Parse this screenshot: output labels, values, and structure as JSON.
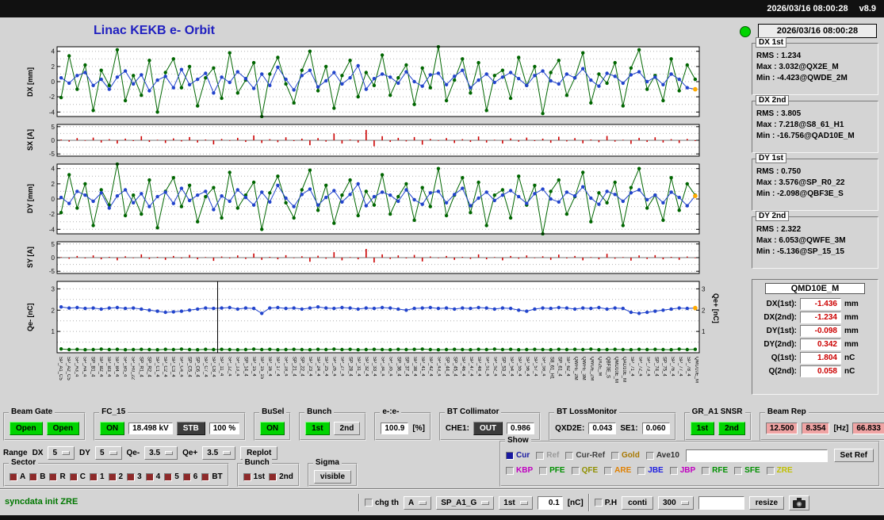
{
  "topbar": {
    "datetime": "2026/03/16 08:00:28",
    "version": "v8.9"
  },
  "title": "Linac KEKB e- Orbit",
  "status_panel": {
    "timestamp": "2026/03/16 08:00:28",
    "groups": [
      {
        "title": "DX 1st",
        "rms": "RMS : 1.234",
        "max": "Max : 3.032@QX2E_M",
        "min": "Min : -4.423@QWDE_2M"
      },
      {
        "title": "DX 2nd",
        "rms": "RMS : 3.805",
        "max": "Max : 7.218@S8_61_H1",
        "min": "Min : -16.756@QAD10E_M"
      },
      {
        "title": "DY 1st",
        "rms": "RMS : 0.750",
        "max": "Max : 3.576@SP_R0_22",
        "min": "Min : -2.098@QBF3E_S"
      },
      {
        "title": "DY 2nd",
        "rms": "RMS : 2.322",
        "max": "Max : 6.053@QWFE_3M",
        "min": "Min : -5.136@SP_15_15"
      }
    ],
    "magnet": {
      "name": "QMD10E_M",
      "rows": [
        {
          "label": "DX(1st):",
          "value": "-1.436",
          "unit": "mm"
        },
        {
          "label": "DX(2nd):",
          "value": "-1.234",
          "unit": "mm"
        },
        {
          "label": "DY(1st):",
          "value": "-0.098",
          "unit": "mm"
        },
        {
          "label": "DY(2nd):",
          "value": "0.342",
          "unit": "mm"
        },
        {
          "label": "Q(1st):",
          "value": "1.804",
          "unit": "nC"
        },
        {
          "label": "Q(2nd):",
          "value": "0.058",
          "unit": "nC"
        }
      ]
    }
  },
  "chart_data": [
    {
      "type": "line-scatter",
      "name": "DX",
      "ylabel": "DX [mm]",
      "ylim": [
        -4.6,
        4.6
      ],
      "yticks": [
        4,
        2,
        0,
        -2,
        -4
      ],
      "grid": [
        -4,
        -3,
        -2,
        -1,
        0,
        1,
        2,
        3,
        4
      ],
      "end_marker": "#ffaa00",
      "series": [
        {
          "name": "2nd bunch",
          "color": "#006600",
          "values": [
            -2.1,
            3.4,
            -1.0,
            2.2,
            -3.8,
            1.5,
            -0.5,
            4.2,
            -2.5,
            0.8,
            -1.8,
            2.8,
            -4.0,
            1.2,
            3.0,
            -0.8,
            2.0,
            -3.2,
            0.5,
            1.8,
            -2.2,
            3.8,
            -1.5,
            0.2,
            2.5,
            -6.0,
            1.0,
            3.2,
            -0.3,
            -2.8,
            1.5,
            4.0,
            -1.2,
            2.0,
            -3.5,
            0.8,
            2.8,
            -2.0,
            1.2,
            -0.5,
            3.5,
            -1.8,
            0.5,
            2.2,
            -3.0,
            1.8,
            -0.8,
            7.0,
            -2.5,
            0.2,
            3.0,
            -1.5,
            2.5,
            -3.8,
            0.8,
            1.5,
            -2.2,
            3.2,
            -0.5,
            2.0,
            -4.2,
            1.2,
            2.8,
            -1.8,
            0.5,
            3.8,
            -2.8,
            1.0,
            -0.2,
            2.5,
            -3.2,
            1.8,
            4.2,
            -1.0,
            0.8,
            -2.5,
            3.0,
            -1.2,
            2.2,
            0.3
          ]
        },
        {
          "name": "1st bunch",
          "color": "#2244cc",
          "values": [
            0.5,
            -0.2,
            0.8,
            1.2,
            -0.5,
            0.3,
            -1.0,
            0.6,
            1.4,
            -0.3,
            0.9,
            -1.2,
            0.2,
            0.7,
            -0.8,
            1.6,
            -0.4,
            0.3,
            1.1,
            -1.5,
            0.6,
            -0.1,
            1.3,
            0.4,
            -0.9,
            1.0,
            -0.5,
            1.9,
            0.3,
            -1.1,
            0.8,
            1.5,
            -0.7,
            0.1,
            1.2,
            -0.3,
            0.5,
            2.1,
            -1.0,
            0.4,
            1.0,
            0.6,
            -0.2,
            1.3,
            0.0,
            -0.6,
            0.9,
            1.1,
            -0.4,
            0.7,
            1.5,
            -0.8,
            0.2,
            1.0,
            -0.1,
            0.6,
            1.2,
            0.4,
            -0.5,
            0.8,
            1.4,
            0.1,
            -0.3,
            1.0,
            0.5,
            1.7,
            0.2,
            -0.6,
            1.1,
            0.7,
            -0.2,
            0.9,
            1.3,
            0.0,
            0.6,
            -0.4,
            1.0,
            0.3,
            -0.8,
            -1.0
          ]
        }
      ]
    },
    {
      "type": "bars",
      "name": "SX",
      "ylabel": "SX [A]",
      "ylim": [
        -5.8,
        5.8
      ],
      "yticks": [
        5,
        0,
        -5
      ],
      "grid": [
        -5,
        -2.5,
        2.5,
        5
      ],
      "color": "#cc0000",
      "values": [
        0.3,
        -0.5,
        0.8,
        -0.2,
        1.0,
        -0.8,
        0.4,
        -1.2,
        0.6,
        -0.3,
        1.5,
        -0.6,
        0.2,
        -1.0,
        0.7,
        -0.4,
        1.2,
        -0.8,
        0.3,
        -1.5,
        0.5,
        -0.2,
        0.9,
        -0.6,
        1.8,
        -1.0,
        0.4,
        -0.7,
        1.1,
        -0.3,
        0.6,
        -1.8,
        0.8,
        -0.5,
        2.5,
        -1.2,
        0.3,
        -0.8,
        3.8,
        -2.2,
        1.5,
        -0.6,
        0.9,
        -0.4,
        1.2,
        -1.6,
        0.5,
        -0.2,
        0.8,
        -1.0,
        0.4,
        -0.6,
        1.4,
        -0.8,
        0.2,
        -1.2,
        0.7,
        -0.5,
        1.0,
        -0.3,
        0.6,
        -0.9,
        1.3,
        -0.4,
        0.8,
        -1.1,
        0.3,
        -0.7,
        1.6,
        -0.5,
        0.2,
        -1.3,
        0.9,
        -0.6,
        1.1,
        -0.8,
        0.4,
        -1.0,
        0.5,
        -0.3
      ]
    },
    {
      "type": "line-scatter",
      "name": "DY",
      "ylabel": "DY [mm]",
      "ylim": [
        -4.6,
        4.6
      ],
      "yticks": [
        4,
        2,
        0,
        -2,
        -4
      ],
      "grid": [
        -4,
        -3,
        -2,
        -1,
        0,
        1,
        2,
        3,
        4
      ],
      "end_marker": "#ffaa00",
      "series": [
        {
          "name": "2nd bunch",
          "color": "#006600",
          "values": [
            -1.8,
            3.2,
            -1.2,
            2.0,
            -3.5,
            1.2,
            -0.8,
            6.0,
            -2.2,
            0.5,
            -2.0,
            2.5,
            -3.8,
            1.0,
            2.8,
            -1.0,
            1.8,
            -3.0,
            0.3,
            1.5,
            -2.5,
            3.5,
            -1.2,
            0.5,
            2.2,
            -4.0,
            0.8,
            3.0,
            -0.5,
            -2.5,
            1.2,
            3.8,
            -1.5,
            1.8,
            -3.2,
            0.5,
            2.5,
            -2.2,
            1.0,
            -0.8,
            3.2,
            -2.0,
            0.3,
            2.0,
            -2.8,
            1.5,
            -1.0,
            4.0,
            -2.2,
            0.5,
            2.8,
            -1.8,
            2.2,
            -3.5,
            0.5,
            1.2,
            -2.5,
            3.0,
            -0.8,
            1.8,
            -6.5,
            1.0,
            2.5,
            -2.0,
            0.3,
            3.5,
            -3.0,
            0.8,
            -0.5,
            2.2,
            -3.5,
            1.5,
            4.0,
            -1.2,
            0.5,
            -2.8,
            2.8,
            -1.5,
            2.0,
            0.5
          ]
        },
        {
          "name": "1st bunch",
          "color": "#2244cc",
          "values": [
            0.2,
            -0.6,
            1.0,
            0.5,
            -0.3,
            0.8,
            -1.2,
            0.4,
            1.2,
            -0.5,
            0.7,
            -1.0,
            0.3,
            0.9,
            -0.6,
            1.4,
            -0.2,
            0.5,
            1.0,
            -1.4,
            0.4,
            -0.3,
            1.2,
            0.2,
            -0.8,
            0.9,
            -0.4,
            1.8,
            0.1,
            -1.0,
            0.6,
            1.3,
            -0.8,
            0.2,
            1.1,
            -0.4,
            0.6,
            2.0,
            -0.9,
            0.3,
            0.9,
            0.5,
            -0.3,
            1.2,
            -0.1,
            -0.7,
            0.8,
            1.0,
            -0.5,
            0.6,
            1.4,
            -0.9,
            0.1,
            0.9,
            -0.2,
            0.5,
            1.1,
            0.3,
            -0.6,
            0.7,
            1.3,
            0.0,
            -0.4,
            0.9,
            0.4,
            1.6,
            0.1,
            -0.7,
            1.0,
            0.6,
            -0.3,
            0.8,
            1.2,
            -0.1,
            0.5,
            -0.5,
            0.9,
            0.2,
            -0.9,
            0.4
          ]
        }
      ]
    },
    {
      "type": "bars",
      "name": "SY",
      "ylabel": "SY [A]",
      "ylim": [
        -5.8,
        5.8
      ],
      "yticks": [
        5,
        0,
        -5
      ],
      "grid": [
        -5,
        -2.5,
        2.5,
        5
      ],
      "color": "#cc0000",
      "values": [
        0.2,
        -0.4,
        0.6,
        -0.3,
        0.8,
        -0.6,
        0.3,
        -1.0,
        0.5,
        -0.2,
        1.2,
        -0.5,
        0.3,
        -0.8,
        0.6,
        -0.3,
        1.0,
        -0.6,
        0.2,
        -1.2,
        0.4,
        -0.3,
        0.8,
        -0.5,
        1.5,
        -0.8,
        0.3,
        -0.6,
        0.9,
        -0.2,
        0.5,
        -1.5,
        0.7,
        -0.4,
        2.0,
        -1.0,
        0.2,
        -0.6,
        3.2,
        -1.8,
        1.2,
        -0.5,
        0.8,
        -0.3,
        1.0,
        -1.4,
        0.4,
        -0.2,
        0.6,
        -0.8,
        0.3,
        -0.5,
        1.2,
        -0.6,
        0.2,
        -1.0,
        0.6,
        -0.4,
        0.8,
        -0.2,
        0.5,
        -0.8,
        1.1,
        -0.3,
        0.6,
        -1.0,
        0.2,
        -0.6,
        1.4,
        -0.4,
        0.2,
        -1.1,
        0.8,
        -0.5,
        0.9,
        -0.6,
        0.3,
        -0.8,
        0.4,
        -0.2
      ]
    },
    {
      "type": "line-scatter",
      "name": "Qe",
      "ylabel": "Qe- [nC]",
      "ylabel_right": "Qe+ [nC]",
      "ylim": [
        0,
        3.35
      ],
      "yticks": [
        1,
        2,
        3
      ],
      "grid": [
        0.5,
        1,
        1.5,
        2,
        2.5,
        3
      ],
      "right_ticks": true,
      "vline_frac": 0.25,
      "end_marker": "#ffaa00",
      "series": [
        {
          "name": "Qe+",
          "color": "#006600",
          "values": [
            0.18,
            0.15,
            0.16,
            0.14,
            0.15,
            0.17,
            0.15,
            0.16,
            0.14,
            0.15,
            0.16,
            0.15,
            0.14,
            0.16,
            0.15,
            0.17,
            0.15,
            0.14,
            0.16,
            0.15,
            0.16,
            0.15,
            0.14,
            0.15,
            0.17,
            0.15,
            0.16,
            0.14,
            0.15,
            0.16,
            0.15,
            0.14,
            0.16,
            0.15,
            0.17,
            0.15,
            0.16,
            0.14,
            0.15,
            0.16,
            0.15,
            0.14,
            0.16,
            0.15,
            0.16,
            0.17,
            0.15,
            0.14,
            0.15,
            0.16,
            0.15,
            0.14,
            0.16,
            0.15,
            0.17,
            0.15,
            0.16,
            0.14,
            0.15,
            0.16,
            0.15,
            0.14,
            0.16,
            0.15,
            0.16,
            0.15,
            0.17,
            0.14,
            0.15,
            0.16,
            0.15,
            0.14,
            0.16,
            0.15,
            0.16,
            0.15,
            0.14,
            0.17,
            0.15,
            0.16
          ]
        },
        {
          "name": "Qe-",
          "color": "#2244cc",
          "values": [
            2.15,
            2.1,
            2.12,
            2.08,
            2.1,
            2.05,
            2.1,
            2.12,
            2.08,
            2.1,
            2.05,
            2.0,
            1.95,
            1.9,
            1.92,
            1.95,
            2.0,
            2.05,
            2.1,
            2.08,
            2.1,
            2.12,
            2.05,
            2.1,
            2.08,
            1.85,
            2.1,
            2.12,
            2.08,
            2.1,
            2.05,
            2.1,
            2.15,
            2.1,
            2.08,
            2.12,
            2.1,
            2.05,
            2.1,
            2.08,
            2.12,
            2.1,
            2.05,
            2.0,
            2.08,
            2.1,
            2.12,
            2.08,
            2.1,
            2.05,
            2.1,
            2.08,
            2.12,
            2.1,
            2.05,
            2.1,
            2.08,
            2.0,
            1.95,
            2.05,
            2.1,
            2.08,
            2.12,
            2.1,
            2.05,
            2.1,
            2.08,
            2.12,
            2.05,
            2.1,
            2.08,
            1.9,
            1.85,
            1.9,
            1.95,
            2.0,
            2.05,
            2.1,
            2.08,
            2.1
          ]
        }
      ]
    }
  ],
  "xlabels": [
    "SP_A1_C5",
    "SP_A2_C5",
    "SP_A3_4",
    "SP_A4_4",
    "SP_B1_4",
    "SP_B2_4",
    "SP_B3_4",
    "SP_B4_4",
    "SP_B5_4",
    "SP_R0_22",
    "SP_R1_4",
    "SP_R2_4",
    "SP_C1_4",
    "SP_C2_4",
    "SP_C3_4",
    "SP_C4_4",
    "SP_C5_4",
    "SP_C6_4",
    "SP_C7_4",
    "SP_C8_4",
    "SP_11_4",
    "SP_12_4",
    "SP_13_4",
    "SP_14_4",
    "SP_15_4",
    "SP_15_15",
    "SP_16_4",
    "SP_17_4",
    "SP_18_4",
    "SP_21_4",
    "SP_22_4",
    "SP_23_4",
    "SP_24_4",
    "SP_25_4",
    "SP_26_4",
    "SP_27_4",
    "SP_28_4",
    "SP_31_4",
    "SP_32_4",
    "SP_33_4",
    "SP_34_4",
    "SP_35_4",
    "SP_36_4",
    "SP_37_4",
    "SP_38_4",
    "SP_41_4",
    "SP_42_4",
    "SP_43_4",
    "SP_44_4",
    "SP_45_4",
    "SP_46_4",
    "SP_47_4",
    "SP_48_4",
    "SP_51_4",
    "SP_52_4",
    "SP_53_4",
    "SP_54_4",
    "SP_55_4",
    "SP_56_4",
    "SP_57_4",
    "SP_58_4",
    "S8_61_H1",
    "SP_61_4",
    "SP_62_4",
    "QWFE_2M",
    "QWFE_3M",
    "QWDE_2M",
    "QX2E_M",
    "QBF3E_S",
    "QMD10E_M",
    "QAD10E_M",
    "SP_71_4",
    "SP_72_4",
    "SP_73_4",
    "SP_74_4",
    "SP_75_4",
    "SP_76_4",
    "SP_77_4",
    "SP_78_4",
    "QMD10E_M"
  ],
  "controls": {
    "beam_gate": {
      "title": "Beam Gate",
      "open1": "Open",
      "open2": "Open"
    },
    "fc15": {
      "title": "FC_15",
      "on": "ON",
      "kv": "18.498 kV",
      "stb": "STB",
      "pct": "100 %"
    },
    "busel": {
      "title": "BuSel",
      "on": "ON"
    },
    "bunch_top": {
      "title": "Bunch",
      "first": "1st",
      "second": "2nd"
    },
    "ee_ratio": {
      "title": "e-:e-",
      "value": "100.9",
      "unit": "[%]"
    },
    "bt_collimator": {
      "title": "BT Collimator",
      "che1_label": "CHE1:",
      "che1_state": "OUT",
      "che1_value": "0.986"
    },
    "bt_lossmonitor": {
      "title": "BT LossMonitor",
      "qxd2e_label": "QXD2E:",
      "qxd2e_value": "0.043",
      "se1_label": "SE1:",
      "se1_value": "0.060"
    },
    "gr_a1_snsr": {
      "title": "GR_A1 SNSR",
      "first": "1st",
      "second": "2nd"
    },
    "beam_rep": {
      "title": "Beam Rep",
      "rep1": "12.500",
      "rep2": "8.354",
      "hz_unit": "[Hz]",
      "duty": "66.833",
      "pct_unit": "[%]"
    },
    "range_row": {
      "label": "Range",
      "dx_label": "DX",
      "dx_value": "5",
      "dy_label": "DY",
      "dy_value": "5",
      "qem_label": "Qe-",
      "qem_value": "3.5",
      "qep_label": "Qe+",
      "qep_value": "3.5",
      "replot": "Replot"
    },
    "sector": {
      "title": "Sector",
      "items": [
        "A",
        "B",
        "R",
        "C",
        "1",
        "2",
        "3",
        "4",
        "5",
        "6",
        "BT"
      ]
    },
    "bunch_bottom": {
      "title": "Bunch",
      "first": "1st",
      "second": "2nd"
    },
    "sigma": {
      "title": "Sigma",
      "visible": "visible"
    },
    "show": {
      "title": "Show",
      "row1": [
        {
          "label": "Cur",
          "color": "#1818a0",
          "checked": true
        },
        {
          "label": "Ref",
          "color": "#9a9a9a",
          "checked": false
        },
        {
          "label": "Cur-Ref",
          "color": "#404040",
          "checked": false
        },
        {
          "label": "Gold",
          "color": "#a87800",
          "checked": false
        },
        {
          "label": "Ave10",
          "color": "#303030",
          "checked": false
        }
      ],
      "ref_input_value": "",
      "set_ref": "Set Ref",
      "row2": [
        {
          "label": "KBP",
          "color": "#c000c0",
          "checked": false
        },
        {
          "label": "PFE",
          "color": "#009000",
          "checked": false
        },
        {
          "label": "QFE",
          "color": "#909000",
          "checked": false
        },
        {
          "label": "ARE",
          "color": "#e08000",
          "checked": false
        },
        {
          "label": "JBE",
          "color": "#2020e0",
          "checked": false
        },
        {
          "label": "JBP",
          "color": "#c000c0",
          "checked": false
        },
        {
          "label": "RFE",
          "color": "#009000",
          "checked": false
        },
        {
          "label": "SFE",
          "color": "#009000",
          "checked": false
        },
        {
          "label": "ZRE",
          "color": "#c0c000",
          "checked": false
        }
      ]
    },
    "statusbar": {
      "message": "syncdata init ZRE",
      "chg_th": "chg th",
      "select_a": "A",
      "select_sp": "SP_A1_G",
      "select_bunch": "1st",
      "threshold": "0.1",
      "threshold_unit": "[nC]",
      "ph": "P.H",
      "conti": "conti",
      "select_300": "300",
      "blank_value": "",
      "resize": "resize"
    }
  }
}
